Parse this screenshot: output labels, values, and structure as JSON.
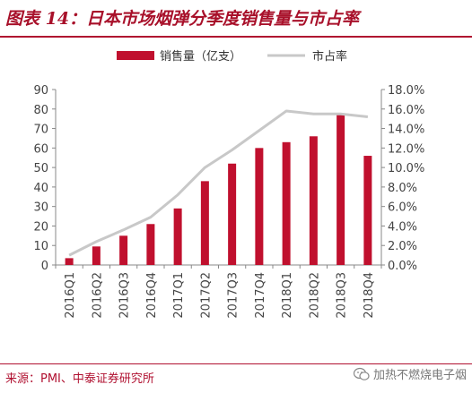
{
  "title": "图表 14：日本市场烟弹分季度销售量与市占率",
  "source": "来源：PMI、中泰证券研究所",
  "watermark": "加热不燃烧电子烟",
  "colors": {
    "bar": "#c0102e",
    "line": "#c8c8c8",
    "accent": "#b01030"
  },
  "chart_data": {
    "type": "bar",
    "categories": [
      "2016Q1",
      "2016Q2",
      "2016Q3",
      "2016Q4",
      "2017Q1",
      "2017Q2",
      "2017Q3",
      "2017Q4",
      "2018Q1",
      "2018Q2",
      "2018Q3",
      "2018Q4"
    ],
    "series": [
      {
        "name": "销售量（亿支）",
        "type": "bar",
        "axis": "left",
        "values": [
          3.5,
          9.5,
          15,
          21,
          29,
          43,
          52,
          60,
          63,
          66,
          77,
          56
        ]
      },
      {
        "name": "市占率",
        "type": "line",
        "axis": "right",
        "values": [
          1.0,
          2.4,
          3.6,
          4.9,
          7.2,
          10.0,
          11.8,
          13.8,
          15.8,
          15.5,
          15.5,
          15.2
        ]
      }
    ],
    "ylim_left": [
      0,
      90
    ],
    "yticks_left": [
      "0",
      "10",
      "20",
      "30",
      "40",
      "50",
      "60",
      "70",
      "80",
      "90"
    ],
    "ylim_right": [
      0,
      18
    ],
    "yticks_right": [
      "0.0%",
      "2.0%",
      "4.0%",
      "6.0%",
      "8.0%",
      "10.0%",
      "12.0%",
      "14.0%",
      "16.0%",
      "18.0%"
    ],
    "legend_position": "top-center",
    "grid": false
  }
}
